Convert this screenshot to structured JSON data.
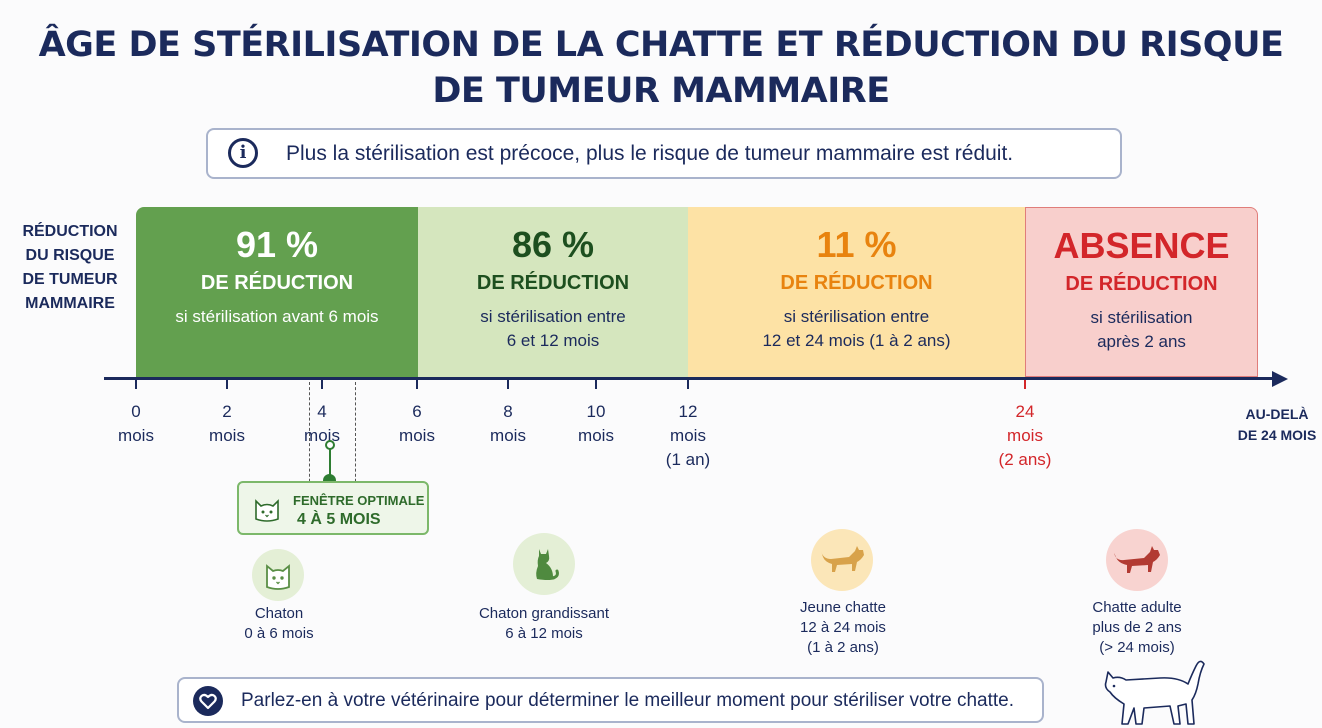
{
  "title": {
    "line1": "ÂGE DE STÉRILISATION DE LA CHATTE ET RÉDUCTION DU RISQUE",
    "line2": "DE TUMEUR MAMMAIRE"
  },
  "info": {
    "icon": "info-icon",
    "text": "Plus la stérilisation est précoce, plus le risque de tumeur mammaire est réduit."
  },
  "y_label": [
    "RÉDUCTION",
    "DU RISQUE",
    "DE TUMEUR",
    "MAMMAIRE"
  ],
  "segments": [
    {
      "value": "91 %",
      "label": "DE RÉDUCTION",
      "condition": [
        "si stérilisation avant 6 mois"
      ],
      "color": "#63a04f"
    },
    {
      "value": "86 %",
      "label": "DE RÉDUCTION",
      "condition": [
        "si stérilisation entre",
        "6 et 12 mois"
      ],
      "color": "#d5e6be"
    },
    {
      "value": "11 %",
      "label": "DE RÉDUCTION",
      "condition": [
        "si stérilisation entre",
        "12 et 24 mois (1 à 2 ans)"
      ],
      "color": "#fde2a5"
    },
    {
      "value": "ABSENCE",
      "label": "DE RÉDUCTION",
      "condition": [
        "si stérilisation",
        "après 2 ans"
      ],
      "color": "#f8cfcc"
    }
  ],
  "axis": {
    "ticks": [
      {
        "num": "0",
        "unit": "mois",
        "extra": ""
      },
      {
        "num": "2",
        "unit": "mois",
        "extra": ""
      },
      {
        "num": "4",
        "unit": "mois",
        "extra": ""
      },
      {
        "num": "6",
        "unit": "mois",
        "extra": ""
      },
      {
        "num": "8",
        "unit": "mois",
        "extra": ""
      },
      {
        "num": "10",
        "unit": "mois",
        "extra": ""
      },
      {
        "num": "12",
        "unit": "mois",
        "extra": "(1 an)"
      },
      {
        "num": "24",
        "unit": "mois",
        "extra": "(2 ans)"
      }
    ],
    "beyond": [
      "AU-DELÀ",
      "DE 24 MOIS"
    ]
  },
  "optimal_window": {
    "line1": "FENÊTRE OPTIMALE",
    "line2": "4 À 5 MOIS",
    "icon": "kitten-face-icon"
  },
  "stages": [
    {
      "icon": "kitten-face-icon",
      "lines": [
        "Chaton",
        "0 à 6 mois"
      ]
    },
    {
      "icon": "sitting-cat-icon",
      "lines": [
        "Chaton grandissant",
        "6 à 12 mois"
      ]
    },
    {
      "icon": "walking-cat-icon",
      "lines": [
        "Jeune chatte",
        "12 à 24 mois",
        "(1 à 2 ans)"
      ]
    },
    {
      "icon": "adult-cat-icon",
      "lines": [
        "Chatte adulte",
        "plus de 2 ans",
        "(> 24 mois)"
      ]
    }
  ],
  "footer": {
    "icon": "heart-icon",
    "text": "Parlez-en à votre vétérinaire pour déterminer le meilleur moment pour stériliser votre chatte."
  },
  "colors": {
    "navy": "#1b2a5c",
    "green": "#63a04f",
    "light_green": "#d5e6be",
    "yellow": "#fde2a5",
    "pink": "#f8cfcc",
    "red": "#d3262a"
  }
}
